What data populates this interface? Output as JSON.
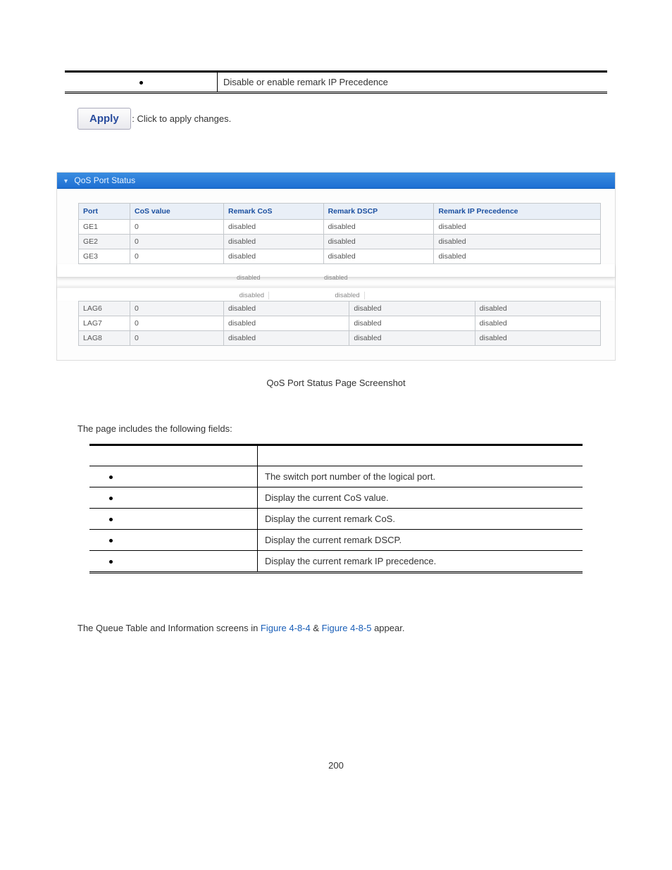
{
  "topRow": {
    "desc": "Disable or enable remark IP Precedence"
  },
  "apply": {
    "button": "Apply",
    "text": ": Click to apply changes."
  },
  "panel": {
    "title": "QoS Port Status",
    "headers": {
      "port": "Port",
      "cos": "CoS value",
      "remarkCos": "Remark CoS",
      "remarkDscp": "Remark DSCP",
      "remarkIp": "Remark IP Precedence"
    },
    "colWidths": {
      "port": "60px",
      "cos": "120px"
    },
    "rowsTop": [
      {
        "port": "GE1",
        "cos": "0",
        "rcos": "disabled",
        "rdscp": "disabled",
        "rip": "disabled",
        "alt": false
      },
      {
        "port": "GE2",
        "cos": "0",
        "rcos": "disabled",
        "rdscp": "disabled",
        "rip": "disabled",
        "alt": true
      },
      {
        "port": "GE3",
        "cos": "0",
        "rcos": "disabled",
        "rdscp": "disabled",
        "rip": "disabled",
        "alt": false
      }
    ],
    "rowsBot": [
      {
        "port": "LAG6",
        "cos": "0",
        "rcos": "disabled",
        "rdscp": "disabled",
        "rip": "disabled",
        "alt": true
      },
      {
        "port": "LAG7",
        "cos": "0",
        "rcos": "disabled",
        "rdscp": "disabled",
        "rip": "disabled",
        "alt": false
      },
      {
        "port": "LAG8",
        "cos": "0",
        "rcos": "disabled",
        "rdscp": "disabled",
        "rip": "disabled",
        "alt": true
      }
    ],
    "tear": {
      "lbl1": "disabled",
      "lbl2": "disabled",
      "bot1": "disabled",
      "bot2": "disabled"
    },
    "colors": {
      "headerBg": "#e9eff7",
      "headerText": "#1a4fa0",
      "border": "#c4c8cc",
      "gradTop": "#3a8de0",
      "gradBot": "#1e6fd3"
    }
  },
  "caption": "QoS Port Status Page Screenshot",
  "text1": "The page includes the following fields:",
  "fields": {
    "rows": [
      {
        "desc": "The switch port number of the logical port."
      },
      {
        "desc": "Display the current CoS value."
      },
      {
        "desc": "Display the current remark CoS."
      },
      {
        "desc": "Display the current remark DSCP."
      },
      {
        "desc": "Display the current remark IP precedence."
      }
    ]
  },
  "bottom": {
    "pre": "The Queue Table and Information screens in ",
    "link1": "Figure 4-8-4",
    "amp": " & ",
    "link2": "Figure 4-8-5",
    "post": " appear."
  },
  "pageNum": "200"
}
